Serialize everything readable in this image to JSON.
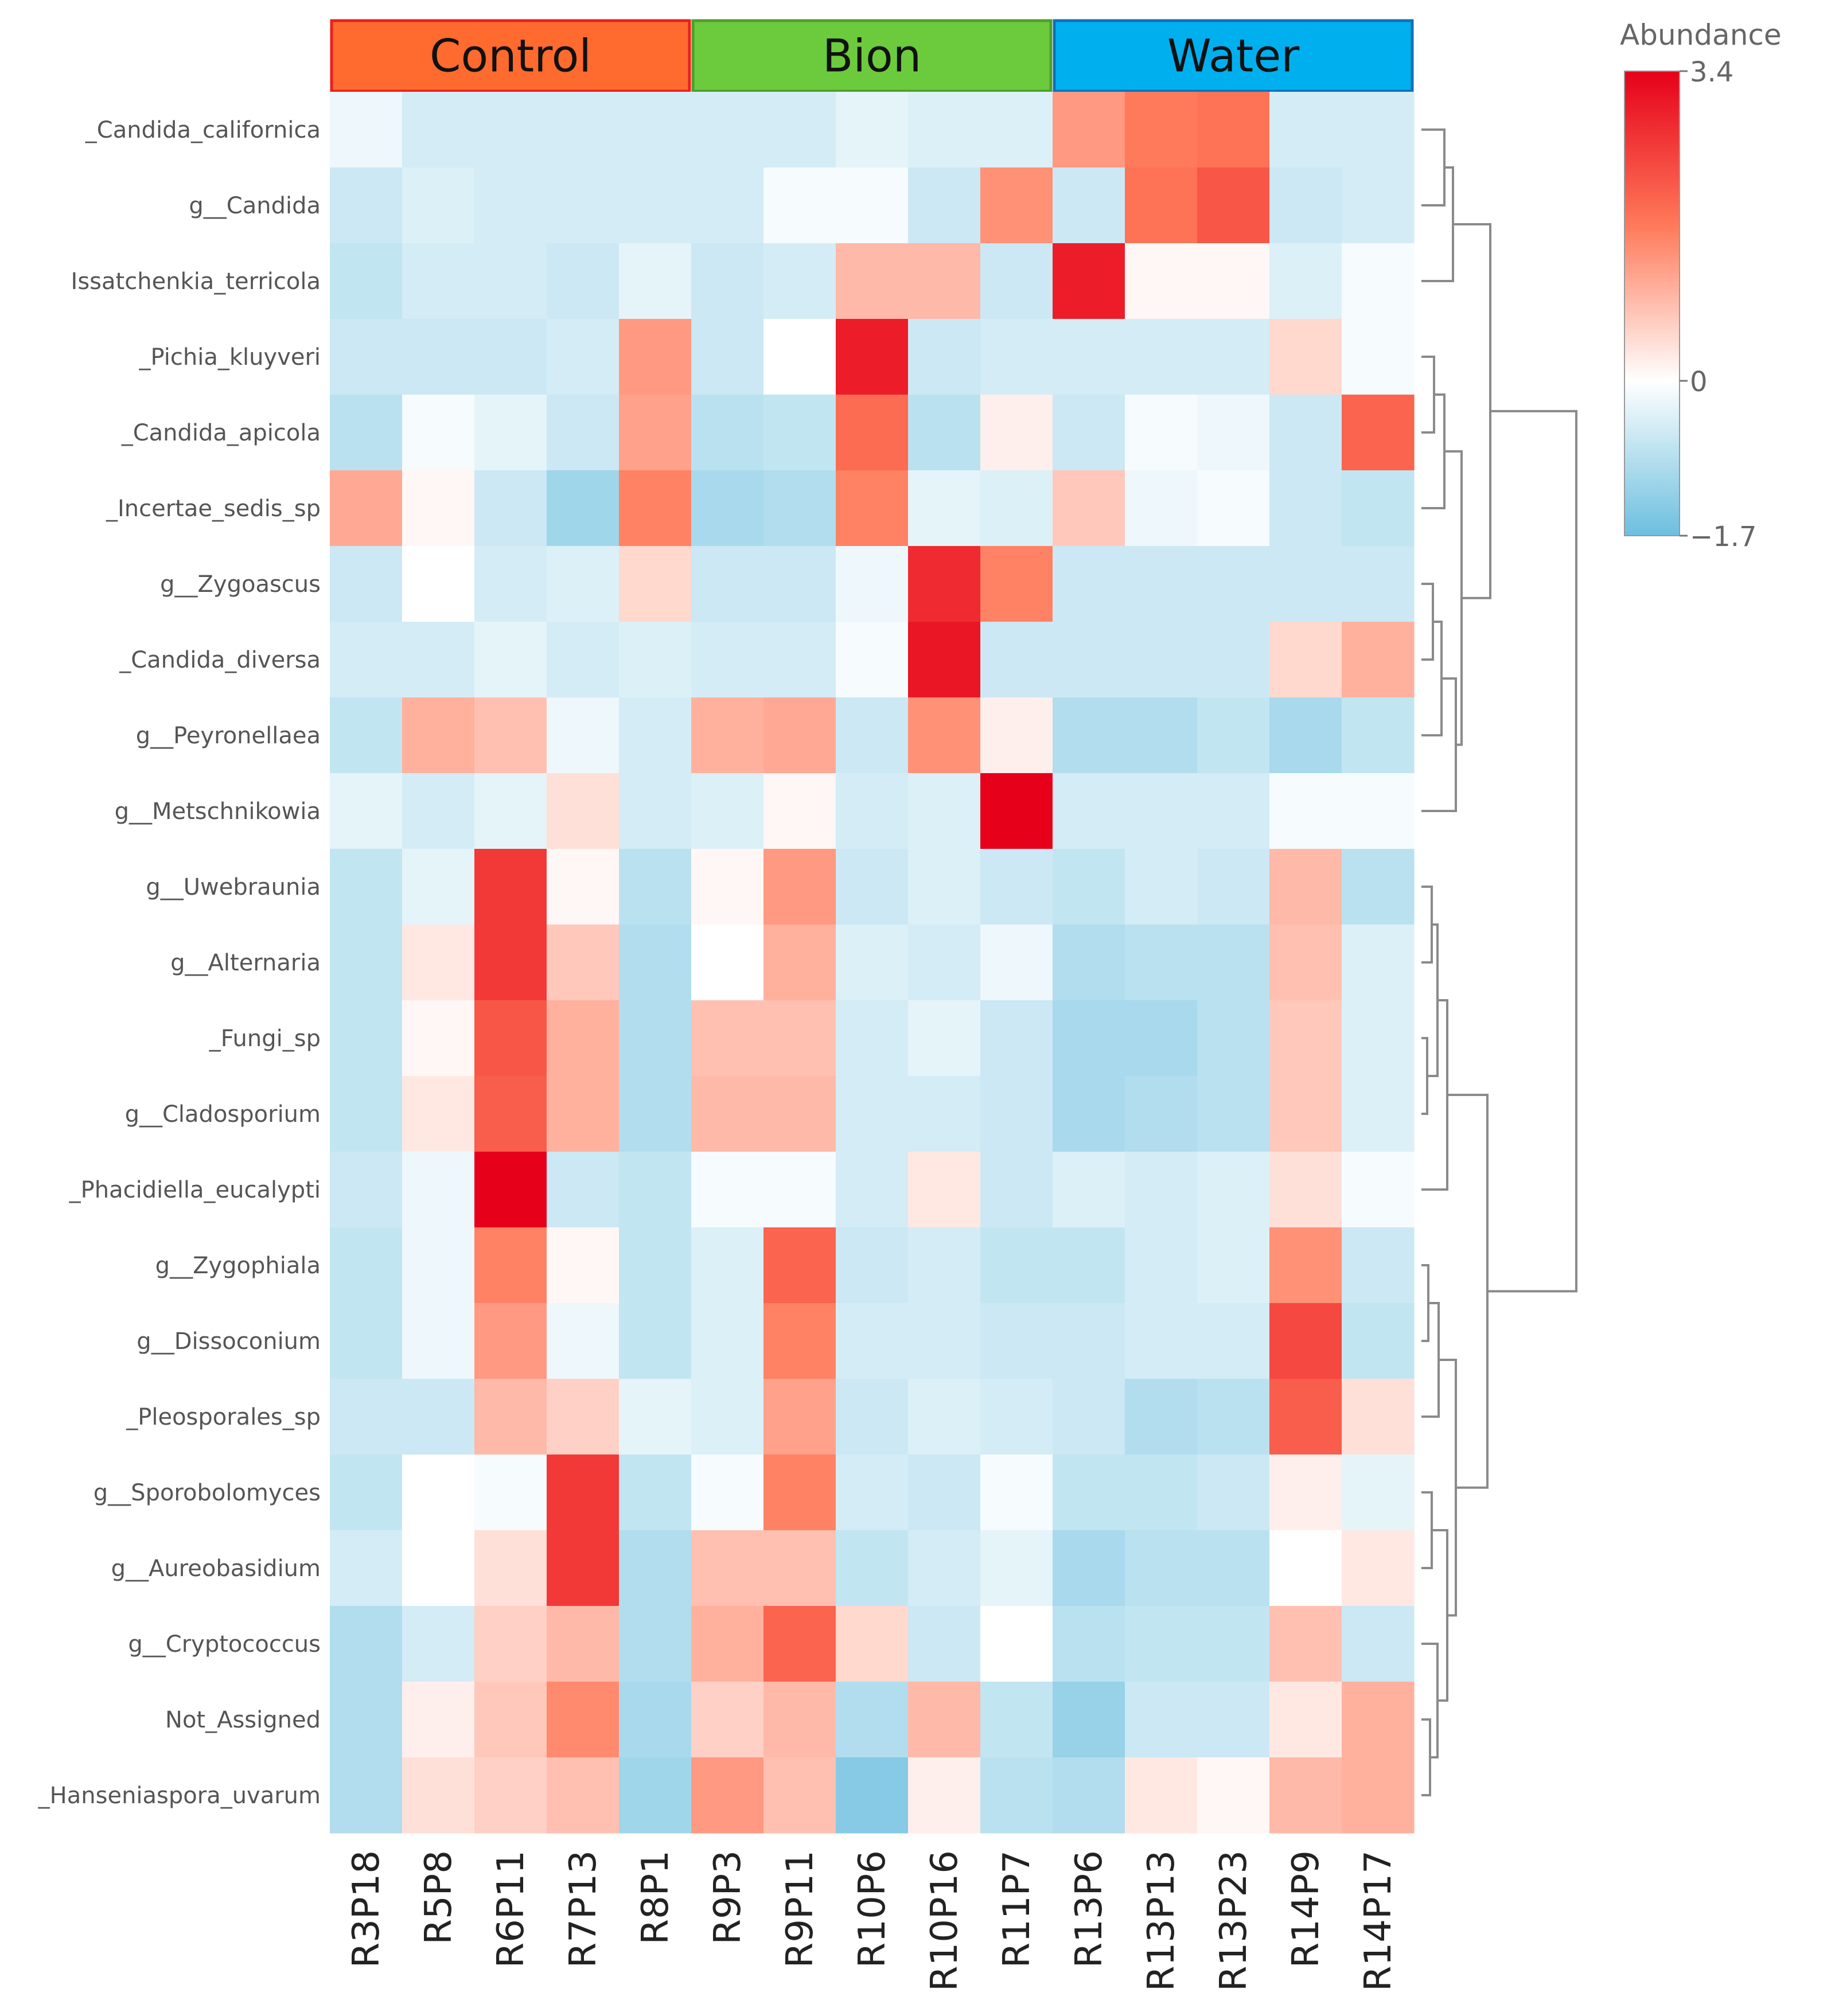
{
  "chart_data": {
    "type": "heatmap",
    "groups": [
      {
        "name": "Control",
        "color": "#FF6A2E",
        "border": "#E8201E",
        "columns": 5
      },
      {
        "name": "Bion",
        "color": "#6CCB3C",
        "border": "#4E9E2C",
        "columns": 5
      },
      {
        "name": "Water",
        "color": "#00B0EE",
        "border": "#1170B8",
        "columns": 5
      }
    ],
    "columns": [
      "R3P18",
      "R5P8",
      "R6P11",
      "R7P13",
      "R8P1",
      "R9P3",
      "R9P11",
      "R10P6",
      "R10P16",
      "R11P7",
      "R13P6",
      "R13P13",
      "R13P23",
      "R14P9",
      "R14P17"
    ],
    "rows": [
      "_Candida_californica",
      "g__Candida",
      "Issatchenkia_terricola",
      "_Pichia_kluyveri",
      "_Candida_apicola",
      "_Incertae_sedis_sp",
      "g__Zygoascus",
      "_Candida_diversa",
      "g__Peyronellaea",
      "g__Metschnikowia",
      "g__Uwebraunia",
      "g__Alternaria",
      "_Fungi_sp",
      "g__Cladosporium",
      "_Phacidiella_eucalypti",
      "g__Zygophiala",
      "g__Dissoconium",
      "_Pleosporales_sp",
      "g__Sporobolomyces",
      "g__Aureobasidium",
      "g__Cryptococcus",
      "Not_Assigned",
      "_Hanseniaspora_uvarum"
    ],
    "values": [
      [
        -0.2,
        -0.5,
        -0.5,
        -0.5,
        -0.5,
        -0.5,
        -0.5,
        -0.3,
        -0.4,
        -0.4,
        1.3,
        1.7,
        1.8,
        -0.5,
        -0.5
      ],
      [
        -0.6,
        -0.4,
        -0.5,
        -0.5,
        -0.5,
        -0.5,
        -0.1,
        -0.1,
        -0.6,
        1.4,
        -0.6,
        1.8,
        2.2,
        -0.6,
        -0.5
      ],
      [
        -0.7,
        -0.5,
        -0.5,
        -0.6,
        -0.3,
        -0.6,
        -0.5,
        0.9,
        0.9,
        -0.6,
        3.0,
        0.1,
        0.1,
        -0.4,
        -0.1
      ],
      [
        -0.6,
        -0.6,
        -0.6,
        -0.5,
        1.3,
        -0.6,
        0.0,
        3.0,
        -0.6,
        -0.5,
        -0.5,
        -0.5,
        -0.5,
        0.5,
        -0.1
      ],
      [
        -0.8,
        -0.1,
        -0.3,
        -0.6,
        1.2,
        -0.8,
        -0.7,
        1.9,
        -0.8,
        0.2,
        -0.6,
        -0.1,
        -0.2,
        -0.6,
        2.0
      ],
      [
        1.1,
        0.1,
        -0.6,
        -1.1,
        1.6,
        -1.0,
        -0.9,
        1.6,
        -0.3,
        -0.4,
        0.7,
        -0.2,
        -0.1,
        -0.6,
        -0.7
      ],
      [
        -0.6,
        0.0,
        -0.5,
        -0.4,
        0.5,
        -0.6,
        -0.6,
        -0.2,
        2.8,
        1.6,
        -0.6,
        -0.6,
        -0.6,
        -0.6,
        -0.6
      ],
      [
        -0.5,
        -0.5,
        -0.3,
        -0.5,
        -0.4,
        -0.5,
        -0.5,
        -0.1,
        3.1,
        -0.6,
        -0.6,
        -0.6,
        -0.6,
        0.5,
        1.0
      ],
      [
        -0.7,
        1.0,
        0.8,
        -0.2,
        -0.5,
        1.0,
        1.1,
        -0.6,
        1.4,
        0.2,
        -0.9,
        -0.9,
        -0.7,
        -1.0,
        -0.7
      ],
      [
        -0.3,
        -0.5,
        -0.3,
        0.4,
        -0.5,
        -0.4,
        0.1,
        -0.5,
        -0.4,
        3.4,
        -0.5,
        -0.5,
        -0.5,
        -0.1,
        -0.1
      ],
      [
        -0.7,
        -0.3,
        2.6,
        0.1,
        -0.8,
        0.1,
        1.3,
        -0.6,
        -0.4,
        -0.6,
        -0.7,
        -0.5,
        -0.6,
        0.9,
        -0.8
      ],
      [
        -0.7,
        0.3,
        2.6,
        0.7,
        -0.9,
        0.0,
        1.0,
        -0.4,
        -0.5,
        -0.2,
        -0.9,
        -0.8,
        -0.8,
        0.8,
        -0.4
      ],
      [
        -0.7,
        0.1,
        2.2,
        1.0,
        -0.9,
        0.8,
        0.8,
        -0.5,
        -0.3,
        -0.6,
        -1.0,
        -1.0,
        -0.8,
        0.7,
        -0.4
      ],
      [
        -0.7,
        0.3,
        2.1,
        1.0,
        -0.9,
        0.9,
        0.9,
        -0.5,
        -0.5,
        -0.6,
        -1.0,
        -0.9,
        -0.8,
        0.7,
        -0.4
      ],
      [
        -0.6,
        -0.2,
        3.4,
        -0.6,
        -0.7,
        -0.1,
        -0.1,
        -0.5,
        0.3,
        -0.6,
        -0.4,
        -0.5,
        -0.4,
        0.4,
        -0.1
      ],
      [
        -0.7,
        -0.2,
        1.6,
        0.1,
        -0.7,
        -0.4,
        2.0,
        -0.6,
        -0.5,
        -0.7,
        -0.7,
        -0.5,
        -0.4,
        1.4,
        -0.6
      ],
      [
        -0.7,
        -0.2,
        1.3,
        -0.2,
        -0.7,
        -0.4,
        1.6,
        -0.5,
        -0.5,
        -0.6,
        -0.6,
        -0.5,
        -0.5,
        2.4,
        -0.7
      ],
      [
        -0.6,
        -0.6,
        0.9,
        0.6,
        -0.3,
        -0.4,
        1.2,
        -0.6,
        -0.4,
        -0.5,
        -0.6,
        -0.9,
        -0.8,
        2.1,
        0.4
      ],
      [
        -0.7,
        0.0,
        -0.1,
        2.6,
        -0.7,
        -0.1,
        1.6,
        -0.5,
        -0.6,
        -0.1,
        -0.7,
        -0.7,
        -0.6,
        0.2,
        -0.3
      ],
      [
        -0.5,
        0.0,
        0.4,
        2.6,
        -0.9,
        0.8,
        0.8,
        -0.7,
        -0.5,
        -0.3,
        -1.0,
        -0.8,
        -0.8,
        0.0,
        0.3
      ],
      [
        -0.9,
        -0.5,
        0.6,
        0.9,
        -0.9,
        1.0,
        2.0,
        0.5,
        -0.6,
        0.0,
        -0.8,
        -0.7,
        -0.7,
        0.8,
        -0.6
      ],
      [
        -0.9,
        0.2,
        0.7,
        1.5,
        -1.0,
        0.6,
        0.9,
        -0.9,
        0.9,
        -0.7,
        -1.2,
        -0.6,
        -0.6,
        0.3,
        1.0
      ],
      [
        -0.9,
        0.4,
        0.6,
        0.8,
        -1.1,
        1.3,
        0.8,
        -1.4,
        0.2,
        -0.8,
        -0.9,
        0.3,
        0.1,
        0.9,
        1.0
      ]
    ],
    "legend": {
      "title": "Abundance",
      "min": -1.7,
      "max": 3.4,
      "ticks": [
        "3.4",
        "0",
        "−1.7"
      ]
    },
    "color_scale": {
      "low": "#6CBFDF",
      "mid": "#FFFFFF",
      "high": "#E6001A"
    },
    "dendrogram": {
      "type": "row",
      "leaf_order": "as listed",
      "position": "right"
    }
  }
}
